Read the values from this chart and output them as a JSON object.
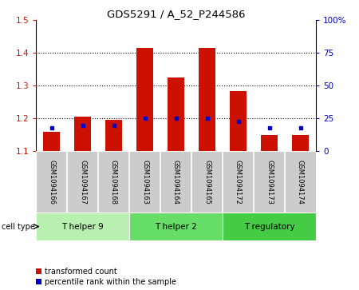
{
  "title": "GDS5291 / A_52_P244586",
  "samples": [
    "GSM1094166",
    "GSM1094167",
    "GSM1094168",
    "GSM1094163",
    "GSM1094164",
    "GSM1094165",
    "GSM1094172",
    "GSM1094173",
    "GSM1094174"
  ],
  "red_values": [
    1.16,
    1.205,
    1.195,
    1.415,
    1.325,
    1.415,
    1.285,
    1.15,
    1.15
  ],
  "blue_pct": [
    18,
    20,
    20,
    25,
    25,
    25,
    23,
    18,
    18
  ],
  "cell_groups": [
    {
      "label": "T helper 9",
      "start": 0,
      "end": 3,
      "color": "#b8f0b0"
    },
    {
      "label": "T helper 2",
      "start": 3,
      "end": 6,
      "color": "#66dd66"
    },
    {
      "label": "T regulatory",
      "start": 6,
      "end": 9,
      "color": "#44cc44"
    }
  ],
  "ylim": [
    1.1,
    1.5
  ],
  "y2lim": [
    0,
    100
  ],
  "yticks": [
    1.1,
    1.2,
    1.3,
    1.4,
    1.5
  ],
  "y2ticks": [
    0,
    25,
    50,
    75,
    100
  ],
  "y2ticklabels": [
    "0",
    "25",
    "50",
    "75",
    "100%"
  ],
  "red_color": "#cc1100",
  "blue_color": "#0000cc",
  "bar_bottom": 1.1,
  "bar_width": 0.55,
  "legend_red": "transformed count",
  "legend_blue": "percentile rank within the sample",
  "celltype_label": "cell type"
}
